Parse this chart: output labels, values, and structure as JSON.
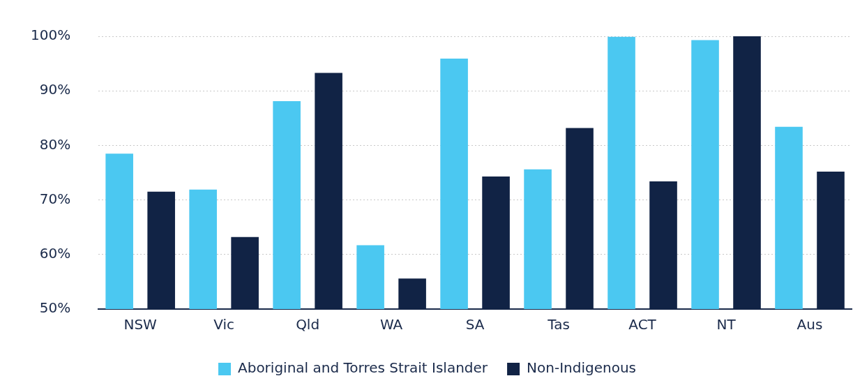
{
  "chart_data": {
    "type": "bar",
    "categories": [
      "NSW",
      "Vic",
      "Qld",
      "WA",
      "SA",
      "Tas",
      "ACT",
      "NT",
      "Aus"
    ],
    "series": [
      {
        "name": "Aboriginal and Torres Strait Islander",
        "color": "#4bc8f1",
        "values": [
          78.5,
          71.9,
          88.1,
          61.7,
          95.9,
          75.6,
          99.9,
          99.3,
          83.4
        ]
      },
      {
        "name": "Non-Indigenous",
        "color": "#112345",
        "values": [
          71.5,
          63.2,
          93.3,
          55.6,
          74.3,
          83.2,
          73.4,
          100,
          75.2
        ]
      }
    ],
    "ylim": [
      50,
      100
    ],
    "yticks": [
      {
        "value": 50,
        "label": "50%"
      },
      {
        "value": 60,
        "label": "60%"
      },
      {
        "value": 70,
        "label": "70%"
      },
      {
        "value": 80,
        "label": "80%"
      },
      {
        "value": 90,
        "label": "90%"
      },
      {
        "value": 100,
        "label": "100%"
      }
    ],
    "grid": "y",
    "legend": "bottom"
  }
}
